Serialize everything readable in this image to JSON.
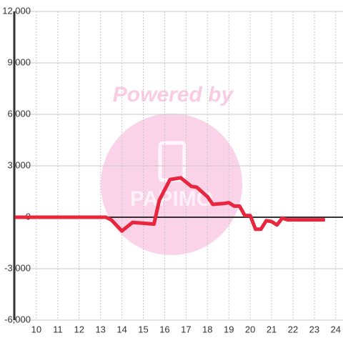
{
  "chart_data": {
    "type": "line",
    "watermark": "Powered by",
    "logo": "PAPIMO",
    "x": [
      9,
      13.25,
      13.5,
      14,
      14.5,
      15,
      15.5,
      15.75,
      16.25,
      16.75,
      17.25,
      17.5,
      18,
      18.25,
      18.75,
      19,
      19.25,
      19.5,
      19.75,
      20,
      20.25,
      20.5,
      20.75,
      21,
      21.25,
      21.5,
      21.75,
      23.5
    ],
    "series": [
      {
        "color": "#e8273f",
        "values": [
          0,
          0,
          -150,
          -800,
          -300,
          -350,
          -400,
          1000,
          2200,
          2300,
          1800,
          1750,
          1200,
          750,
          800,
          850,
          650,
          650,
          100,
          100,
          -700,
          -700,
          -200,
          -250,
          -450,
          -50,
          -150,
          -150
        ]
      }
    ],
    "xlim": [
      9,
      24.34
    ],
    "xticks": [
      10,
      11,
      12,
      13,
      14,
      15,
      16,
      17,
      18,
      19,
      20,
      21,
      22,
      23,
      24
    ],
    "ylim": [
      -6000,
      12000
    ],
    "yticks": [
      {
        "value": -6000,
        "label": "-6,000"
      },
      {
        "value": -3000,
        "label": "-3,000"
      },
      0,
      {
        "value": 3000,
        "label": "3,000"
      },
      {
        "value": 6000,
        "label": "6,000"
      },
      {
        "value": 9000,
        "label": "9,000"
      },
      {
        "value": 12000,
        "label": "12,000"
      }
    ],
    "grid": true
  }
}
